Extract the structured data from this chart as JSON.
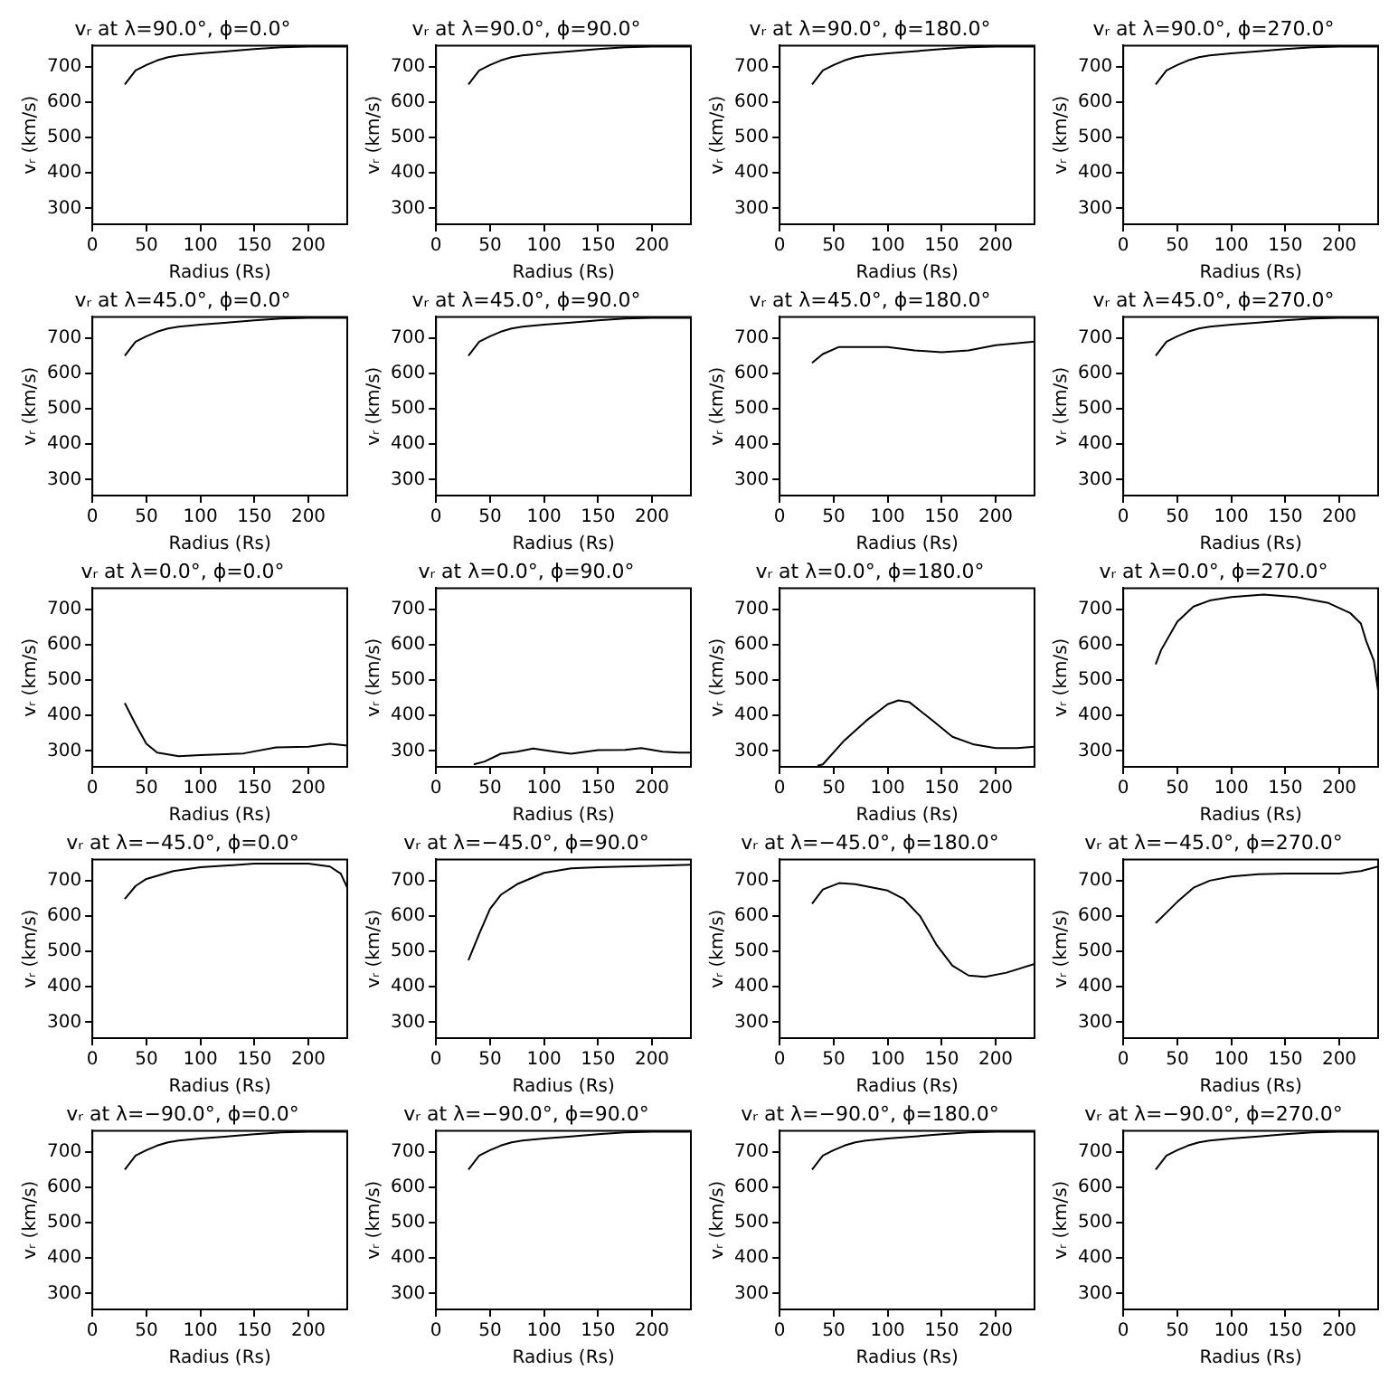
{
  "chart_data": [
    {
      "type": "line",
      "title": "vᵣ at λ=90.0°, ϕ=0.0°",
      "xlabel": "Radius (Rs)",
      "ylabel": "vᵣ (km/s)",
      "color": "#000000",
      "x": [
        30,
        35,
        40,
        50,
        60,
        70,
        80,
        100,
        125,
        150,
        175,
        200,
        236
      ],
      "values": [
        650,
        670,
        690,
        705,
        718,
        727,
        732,
        738,
        744,
        750,
        755,
        757,
        757
      ],
      "xlim": [
        0,
        236
      ],
      "ylim": [
        255,
        760
      ],
      "xticks": [
        0,
        50,
        100,
        150,
        200
      ],
      "yticks": [
        300,
        400,
        500,
        600,
        700
      ]
    },
    {
      "type": "line",
      "title": "vᵣ at λ=90.0°, ϕ=90.0°",
      "xlabel": "Radius (Rs)",
      "ylabel": "vᵣ (km/s)",
      "color": "#000000",
      "x": [
        30,
        35,
        40,
        50,
        60,
        70,
        80,
        100,
        125,
        150,
        175,
        200,
        236
      ],
      "values": [
        650,
        670,
        690,
        705,
        718,
        727,
        732,
        738,
        744,
        750,
        755,
        757,
        757
      ],
      "xlim": [
        0,
        236
      ],
      "ylim": [
        255,
        760
      ],
      "xticks": [
        0,
        50,
        100,
        150,
        200
      ],
      "yticks": [
        300,
        400,
        500,
        600,
        700
      ]
    },
    {
      "type": "line",
      "title": "vᵣ at λ=90.0°, ϕ=180.0°",
      "xlabel": "Radius (Rs)",
      "ylabel": "vᵣ (km/s)",
      "color": "#000000",
      "x": [
        30,
        35,
        40,
        50,
        60,
        70,
        80,
        100,
        125,
        150,
        175,
        200,
        236
      ],
      "values": [
        650,
        670,
        690,
        705,
        718,
        727,
        732,
        738,
        744,
        750,
        755,
        757,
        757
      ],
      "xlim": [
        0,
        236
      ],
      "ylim": [
        255,
        760
      ],
      "xticks": [
        0,
        50,
        100,
        150,
        200
      ],
      "yticks": [
        300,
        400,
        500,
        600,
        700
      ]
    },
    {
      "type": "line",
      "title": "vᵣ at λ=90.0°, ϕ=270.0°",
      "xlabel": "Radius (Rs)",
      "ylabel": "vᵣ (km/s)",
      "color": "#000000",
      "x": [
        30,
        35,
        40,
        50,
        60,
        70,
        80,
        100,
        125,
        150,
        175,
        200,
        236
      ],
      "values": [
        650,
        670,
        690,
        705,
        718,
        727,
        732,
        738,
        744,
        750,
        755,
        757,
        757
      ],
      "xlim": [
        0,
        236
      ],
      "ylim": [
        255,
        760
      ],
      "xticks": [
        0,
        50,
        100,
        150,
        200
      ],
      "yticks": [
        300,
        400,
        500,
        600,
        700
      ]
    },
    {
      "type": "line",
      "title": "vᵣ at λ=45.0°, ϕ=0.0°",
      "xlabel": "Radius (Rs)",
      "ylabel": "vᵣ (km/s)",
      "color": "#000000",
      "x": [
        30,
        35,
        40,
        50,
        60,
        70,
        80,
        100,
        125,
        150,
        175,
        200,
        236
      ],
      "values": [
        650,
        670,
        690,
        705,
        718,
        727,
        732,
        738,
        744,
        750,
        755,
        757,
        757
      ],
      "xlim": [
        0,
        236
      ],
      "ylim": [
        255,
        760
      ],
      "xticks": [
        0,
        50,
        100,
        150,
        200
      ],
      "yticks": [
        300,
        400,
        500,
        600,
        700
      ]
    },
    {
      "type": "line",
      "title": "vᵣ at λ=45.0°, ϕ=90.0°",
      "xlabel": "Radius (Rs)",
      "ylabel": "vᵣ (km/s)",
      "color": "#000000",
      "x": [
        30,
        35,
        40,
        50,
        60,
        70,
        80,
        100,
        125,
        150,
        175,
        200,
        236
      ],
      "values": [
        650,
        670,
        690,
        705,
        718,
        727,
        732,
        738,
        744,
        750,
        755,
        757,
        757
      ],
      "xlim": [
        0,
        236
      ],
      "ylim": [
        255,
        760
      ],
      "xticks": [
        0,
        50,
        100,
        150,
        200
      ],
      "yticks": [
        300,
        400,
        500,
        600,
        700
      ]
    },
    {
      "type": "line",
      "title": "vᵣ at λ=45.0°, ϕ=180.0°",
      "xlabel": "Radius (Rs)",
      "ylabel": "vᵣ (km/s)",
      "color": "#000000",
      "x": [
        30,
        40,
        55,
        100,
        125,
        150,
        175,
        200,
        236
      ],
      "values": [
        630,
        655,
        675,
        675,
        665,
        660,
        665,
        680,
        690
      ],
      "xlim": [
        0,
        236
      ],
      "ylim": [
        255,
        760
      ],
      "xticks": [
        0,
        50,
        100,
        150,
        200
      ],
      "yticks": [
        300,
        400,
        500,
        600,
        700
      ]
    },
    {
      "type": "line",
      "title": "vᵣ at λ=45.0°, ϕ=270.0°",
      "xlabel": "Radius (Rs)",
      "ylabel": "vᵣ (km/s)",
      "color": "#000000",
      "x": [
        30,
        35,
        40,
        50,
        60,
        70,
        80,
        100,
        125,
        150,
        175,
        200,
        236
      ],
      "values": [
        650,
        670,
        690,
        705,
        718,
        727,
        732,
        738,
        744,
        750,
        755,
        757,
        757
      ],
      "xlim": [
        0,
        236
      ],
      "ylim": [
        255,
        760
      ],
      "xticks": [
        0,
        50,
        100,
        150,
        200
      ],
      "yticks": [
        300,
        400,
        500,
        600,
        700
      ]
    },
    {
      "type": "line",
      "title": "vᵣ at λ=0.0°, ϕ=0.0°",
      "xlabel": "Radius (Rs)",
      "ylabel": "vᵣ (km/s)",
      "color": "#000000",
      "x": [
        30,
        40,
        50,
        60,
        80,
        100,
        140,
        170,
        200,
        220,
        236
      ],
      "values": [
        435,
        375,
        320,
        295,
        285,
        288,
        293,
        310,
        312,
        320,
        315
      ],
      "xlim": [
        0,
        236
      ],
      "ylim": [
        255,
        760
      ],
      "xticks": [
        0,
        50,
        100,
        150,
        200
      ],
      "yticks": [
        300,
        400,
        500,
        600,
        700
      ]
    },
    {
      "type": "line",
      "title": "vᵣ at λ=0.0°, ϕ=90.0°",
      "xlabel": "Radius (Rs)",
      "ylabel": "vᵣ (km/s)",
      "color": "#000000",
      "x": [
        35,
        45,
        60,
        75,
        90,
        110,
        125,
        150,
        175,
        190,
        210,
        225,
        236
      ],
      "values": [
        262,
        270,
        292,
        298,
        307,
        298,
        292,
        302,
        303,
        308,
        298,
        295,
        295
      ],
      "xlim": [
        0,
        236
      ],
      "ylim": [
        255,
        760
      ],
      "xticks": [
        0,
        50,
        100,
        150,
        200
      ],
      "yticks": [
        300,
        400,
        500,
        600,
        700
      ]
    },
    {
      "type": "line",
      "title": "vᵣ at λ=0.0°, ϕ=180.0°",
      "xlabel": "Radius (Rs)",
      "ylabel": "vᵣ (km/s)",
      "color": "#000000",
      "x": [
        35,
        40,
        60,
        80,
        100,
        110,
        120,
        140,
        160,
        180,
        200,
        220,
        236
      ],
      "values": [
        258,
        262,
        330,
        385,
        432,
        443,
        438,
        390,
        340,
        318,
        308,
        308,
        312
      ],
      "xlim": [
        0,
        236
      ],
      "ylim": [
        255,
        760
      ],
      "xticks": [
        0,
        50,
        100,
        150,
        200
      ],
      "yticks": [
        300,
        400,
        500,
        600,
        700
      ]
    },
    {
      "type": "line",
      "title": "vᵣ at λ=0.0°, ϕ=270.0°",
      "xlabel": "Radius (Rs)",
      "ylabel": "vᵣ (km/s)",
      "color": "#000000",
      "x": [
        30,
        35,
        50,
        65,
        80,
        100,
        130,
        160,
        190,
        210,
        220,
        225,
        232,
        236
      ],
      "values": [
        545,
        585,
        665,
        708,
        725,
        735,
        742,
        735,
        718,
        690,
        660,
        610,
        555,
        470
      ],
      "xlim": [
        0,
        236
      ],
      "ylim": [
        255,
        760
      ],
      "xticks": [
        0,
        50,
        100,
        150,
        200
      ],
      "yticks": [
        300,
        400,
        500,
        600,
        700
      ]
    },
    {
      "type": "line",
      "title": "vᵣ at λ=−45.0°, ϕ=0.0°",
      "xlabel": "Radius (Rs)",
      "ylabel": "vᵣ (km/s)",
      "color": "#000000",
      "x": [
        30,
        40,
        50,
        75,
        100,
        150,
        200,
        220,
        230,
        236
      ],
      "values": [
        648,
        685,
        705,
        727,
        738,
        748,
        748,
        740,
        720,
        680
      ],
      "xlim": [
        0,
        236
      ],
      "ylim": [
        255,
        760
      ],
      "xticks": [
        0,
        50,
        100,
        150,
        200
      ],
      "yticks": [
        300,
        400,
        500,
        600,
        700
      ]
    },
    {
      "type": "line",
      "title": "vᵣ at λ=−45.0°, ϕ=90.0°",
      "xlabel": "Radius (Rs)",
      "ylabel": "vᵣ (km/s)",
      "color": "#000000",
      "x": [
        30,
        40,
        50,
        60,
        75,
        100,
        125,
        150,
        200,
        236
      ],
      "values": [
        475,
        550,
        620,
        660,
        690,
        722,
        735,
        738,
        742,
        745
      ],
      "xlim": [
        0,
        236
      ],
      "ylim": [
        255,
        760
      ],
      "xticks": [
        0,
        50,
        100,
        150,
        200
      ],
      "yticks": [
        300,
        400,
        500,
        600,
        700
      ]
    },
    {
      "type": "line",
      "title": "vᵣ at λ=−45.0°, ϕ=180.0°",
      "xlabel": "Radius (Rs)",
      "ylabel": "vᵣ (km/s)",
      "color": "#000000",
      "x": [
        30,
        40,
        55,
        70,
        100,
        115,
        130,
        145,
        160,
        175,
        190,
        210,
        236
      ],
      "values": [
        635,
        675,
        693,
        690,
        672,
        648,
        600,
        520,
        460,
        432,
        428,
        440,
        465
      ],
      "xlim": [
        0,
        236
      ],
      "ylim": [
        255,
        760
      ],
      "xticks": [
        0,
        50,
        100,
        150,
        200
      ],
      "yticks": [
        300,
        400,
        500,
        600,
        700
      ]
    },
    {
      "type": "line",
      "title": "vᵣ at λ=−45.0°, ϕ=270.0°",
      "xlabel": "Radius (Rs)",
      "ylabel": "vᵣ (km/s)",
      "color": "#000000",
      "x": [
        30,
        40,
        50,
        65,
        80,
        100,
        125,
        150,
        200,
        220,
        236
      ],
      "values": [
        580,
        610,
        640,
        680,
        700,
        712,
        718,
        720,
        720,
        727,
        740
      ],
      "xlim": [
        0,
        236
      ],
      "ylim": [
        255,
        760
      ],
      "xticks": [
        0,
        50,
        100,
        150,
        200
      ],
      "yticks": [
        300,
        400,
        500,
        600,
        700
      ]
    },
    {
      "type": "line",
      "title": "vᵣ at λ=−90.0°, ϕ=0.0°",
      "xlabel": "Radius (Rs)",
      "ylabel": "vᵣ (km/s)",
      "color": "#000000",
      "x": [
        30,
        35,
        40,
        50,
        60,
        70,
        80,
        100,
        125,
        150,
        175,
        200,
        236
      ],
      "values": [
        650,
        670,
        690,
        705,
        718,
        727,
        732,
        738,
        744,
        750,
        755,
        757,
        757
      ],
      "xlim": [
        0,
        236
      ],
      "ylim": [
        255,
        760
      ],
      "xticks": [
        0,
        50,
        100,
        150,
        200
      ],
      "yticks": [
        300,
        400,
        500,
        600,
        700
      ]
    },
    {
      "type": "line",
      "title": "vᵣ at λ=−90.0°, ϕ=90.0°",
      "xlabel": "Radius (Rs)",
      "ylabel": "vᵣ (km/s)",
      "color": "#000000",
      "x": [
        30,
        35,
        40,
        50,
        60,
        70,
        80,
        100,
        125,
        150,
        175,
        200,
        236
      ],
      "values": [
        650,
        670,
        690,
        705,
        718,
        727,
        732,
        738,
        744,
        750,
        755,
        757,
        757
      ],
      "xlim": [
        0,
        236
      ],
      "ylim": [
        255,
        760
      ],
      "xticks": [
        0,
        50,
        100,
        150,
        200
      ],
      "yticks": [
        300,
        400,
        500,
        600,
        700
      ]
    },
    {
      "type": "line",
      "title": "vᵣ at λ=−90.0°, ϕ=180.0°",
      "xlabel": "Radius (Rs)",
      "ylabel": "vᵣ (km/s)",
      "color": "#000000",
      "x": [
        30,
        35,
        40,
        50,
        60,
        70,
        80,
        100,
        125,
        150,
        175,
        200,
        236
      ],
      "values": [
        650,
        670,
        690,
        705,
        718,
        727,
        732,
        738,
        744,
        750,
        755,
        757,
        757
      ],
      "xlim": [
        0,
        236
      ],
      "ylim": [
        255,
        760
      ],
      "xticks": [
        0,
        50,
        100,
        150,
        200
      ],
      "yticks": [
        300,
        400,
        500,
        600,
        700
      ]
    },
    {
      "type": "line",
      "title": "vᵣ at λ=−90.0°, ϕ=270.0°",
      "xlabel": "Radius (Rs)",
      "ylabel": "vᵣ (km/s)",
      "color": "#000000",
      "x": [
        30,
        35,
        40,
        50,
        60,
        70,
        80,
        100,
        125,
        150,
        175,
        200,
        236
      ],
      "values": [
        650,
        670,
        690,
        705,
        718,
        727,
        732,
        738,
        744,
        750,
        755,
        757,
        757
      ],
      "xlim": [
        0,
        236
      ],
      "ylim": [
        255,
        760
      ],
      "xticks": [
        0,
        50,
        100,
        150,
        200
      ],
      "yticks": [
        300,
        400,
        500,
        600,
        700
      ]
    }
  ]
}
